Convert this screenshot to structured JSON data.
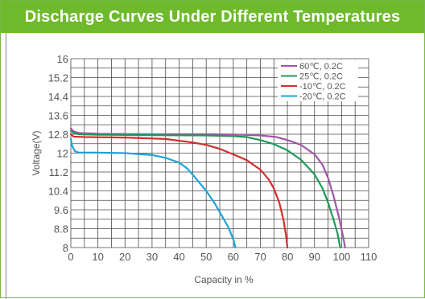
{
  "title": "Discharge Curves Under Different Temperatures",
  "chart_data": {
    "type": "line",
    "title": "Discharge Curves Under Different Temperatures",
    "xlabel": "Capacity in %",
    "ylabel": "Voltage(V)",
    "xlim": [
      0,
      110
    ],
    "ylim": [
      8,
      16
    ],
    "xticks": [
      "0",
      "10",
      "20",
      "30",
      "40",
      "50",
      "60",
      "70",
      "80",
      "90",
      "100",
      "110"
    ],
    "yticks": [
      "16",
      "15.2",
      "14.4",
      "13.6",
      "12.8",
      "12",
      "11.2",
      "10.4",
      "9.6",
      "8.8",
      "8"
    ],
    "grid": true,
    "legend_position": "top-right",
    "series": [
      {
        "name": "60℃, 0.2C",
        "color": "#a256a6",
        "points": [
          [
            0,
            13.05
          ],
          [
            1,
            12.92
          ],
          [
            3,
            12.85
          ],
          [
            10,
            12.82
          ],
          [
            30,
            12.8
          ],
          [
            50,
            12.8
          ],
          [
            60,
            12.79
          ],
          [
            70,
            12.75
          ],
          [
            76,
            12.68
          ],
          [
            80,
            12.55
          ],
          [
            85,
            12.35
          ],
          [
            90,
            11.95
          ],
          [
            93,
            11.5
          ],
          [
            95,
            10.95
          ],
          [
            97,
            10.2
          ],
          [
            99,
            9.3
          ],
          [
            100.5,
            8.5
          ],
          [
            101.3,
            8.0
          ]
        ]
      },
      {
        "name": "25℃, 0.2C",
        "color": "#1f9a5a",
        "points": [
          [
            0,
            12.95
          ],
          [
            1,
            12.85
          ],
          [
            3,
            12.8
          ],
          [
            10,
            12.78
          ],
          [
            30,
            12.76
          ],
          [
            50,
            12.75
          ],
          [
            60,
            12.72
          ],
          [
            65,
            12.68
          ],
          [
            70,
            12.55
          ],
          [
            75,
            12.38
          ],
          [
            80,
            12.12
          ],
          [
            85,
            11.72
          ],
          [
            90,
            11.1
          ],
          [
            93,
            10.5
          ],
          [
            95,
            9.9
          ],
          [
            97,
            9.2
          ],
          [
            98.5,
            8.6
          ],
          [
            99.5,
            8.0
          ]
        ]
      },
      {
        "name": "-10℃, 0.2C",
        "color": "#d42e2e",
        "points": [
          [
            0,
            12.8
          ],
          [
            1,
            12.7
          ],
          [
            5,
            12.68
          ],
          [
            20,
            12.66
          ],
          [
            35,
            12.6
          ],
          [
            45,
            12.45
          ],
          [
            50,
            12.35
          ],
          [
            55,
            12.18
          ],
          [
            60,
            11.95
          ],
          [
            65,
            11.7
          ],
          [
            70,
            11.3
          ],
          [
            73,
            10.9
          ],
          [
            75,
            10.5
          ],
          [
            77,
            9.9
          ],
          [
            78.5,
            9.2
          ],
          [
            79.5,
            8.5
          ],
          [
            80,
            8.0
          ]
        ]
      },
      {
        "name": "-20℃, 0.2C",
        "color": "#1da3dc",
        "points": [
          [
            0,
            12.6
          ],
          [
            0.5,
            12.3
          ],
          [
            1.5,
            12.08
          ],
          [
            3,
            12.02
          ],
          [
            10,
            12.02
          ],
          [
            20,
            12.0
          ],
          [
            30,
            11.92
          ],
          [
            35,
            11.8
          ],
          [
            40,
            11.6
          ],
          [
            43,
            11.35
          ],
          [
            46,
            10.95
          ],
          [
            50,
            10.4
          ],
          [
            53,
            9.9
          ],
          [
            56,
            9.3
          ],
          [
            58,
            8.9
          ],
          [
            60,
            8.35
          ],
          [
            60.8,
            8.0
          ]
        ]
      }
    ]
  }
}
